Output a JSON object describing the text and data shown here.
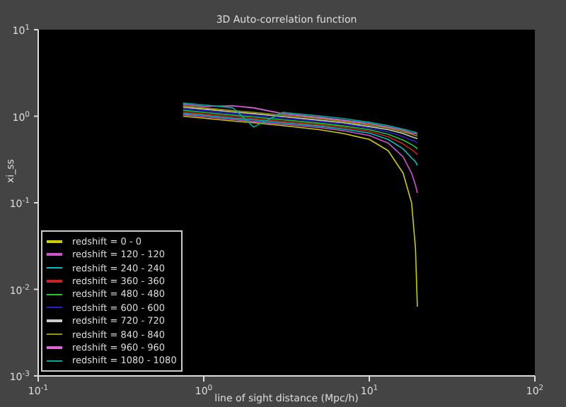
{
  "chart_data": {
    "type": "line",
    "title": "3D Auto-correlation function",
    "xlabel": "line of sight distance (Mpc/h)",
    "ylabel": "xi_ss",
    "log": "xy",
    "grid": false,
    "legend": "bottom left",
    "xlim": [
      0.1,
      100
    ],
    "ylim": [
      0.001,
      10
    ],
    "xticks": [
      {
        "value": 0.1,
        "label": "10$^{-1}$"
      },
      {
        "value": 1,
        "label": "10$^{0}$"
      },
      {
        "value": 10,
        "label": "10$^{1}$"
      },
      {
        "value": 100,
        "label": "10$^{2}$"
      }
    ],
    "yticks": [
      {
        "value": 0.001,
        "label": "10$^{-3}$"
      },
      {
        "value": 0.01,
        "label": "10$^{-2}$"
      },
      {
        "value": 0.1,
        "label": "10$^{-1}$"
      },
      {
        "value": 1,
        "label": "10$^{0}$"
      },
      {
        "value": 10,
        "label": "10$^{1}$"
      }
    ],
    "x": [
      0.75,
      1,
      1.5,
      2,
      3,
      5,
      7,
      10,
      13,
      16,
      18,
      19,
      19.5
    ],
    "series": [
      {
        "name": "redshift = 0 - 0",
        "color": "#cccc00",
        "values": [
          1.0,
          0.95,
          0.88,
          0.84,
          0.78,
          0.7,
          0.63,
          0.54,
          0.4,
          0.22,
          0.1,
          0.03,
          0.0063
        ]
      },
      {
        "name": "redshift = 120 - 120",
        "color": "#cc55cc",
        "values": [
          1.04,
          0.99,
          0.92,
          0.87,
          0.81,
          0.74,
          0.68,
          0.6,
          0.49,
          0.34,
          0.22,
          0.16,
          0.13
        ]
      },
      {
        "name": "redshift = 240 - 240",
        "color": "#00c0c0",
        "values": [
          1.08,
          1.03,
          0.95,
          0.91,
          0.84,
          0.77,
          0.71,
          0.64,
          0.54,
          0.42,
          0.33,
          0.3,
          0.27
        ]
      },
      {
        "name": "redshift = 360 - 360",
        "color": "#cc2222",
        "values": [
          1.12,
          1.06,
          0.99,
          0.94,
          0.87,
          0.8,
          0.74,
          0.67,
          0.58,
          0.48,
          0.41,
          0.38,
          0.36
        ]
      },
      {
        "name": "redshift = 480 - 480",
        "color": "#22cc22",
        "values": [
          1.17,
          1.11,
          1.03,
          0.98,
          0.91,
          0.83,
          0.77,
          0.7,
          0.62,
          0.53,
          0.47,
          0.44,
          0.42
        ]
      },
      {
        "name": "redshift = 600 - 600",
        "color": "#2222cc",
        "values": [
          1.22,
          1.16,
          1.07,
          1.02,
          0.95,
          0.87,
          0.81,
          0.73,
          0.66,
          0.58,
          0.53,
          0.51,
          0.49
        ]
      },
      {
        "name": "redshift = 720 - 720",
        "color": "#cccccc",
        "values": [
          1.27,
          1.21,
          1.12,
          1.07,
          0.99,
          0.9,
          0.84,
          0.76,
          0.7,
          0.63,
          0.58,
          0.56,
          0.55
        ]
      },
      {
        "name": "redshift = 840 - 840",
        "color": "#999900",
        "values": [
          1.32,
          1.25,
          1.16,
          1.11,
          1.03,
          0.94,
          0.87,
          0.79,
          0.73,
          0.66,
          0.62,
          0.6,
          0.59
        ]
      },
      {
        "name": "redshift = 960 - 960",
        "color": "#dd66dd",
        "values": [
          1.37,
          1.3,
          1.32,
          1.25,
          1.07,
          0.97,
          0.9,
          0.82,
          0.75,
          0.69,
          0.64,
          0.63,
          0.62
        ]
      },
      {
        "name": "redshift = 1080 - 1080",
        "color": "#00aa99",
        "values": [
          1.42,
          1.35,
          1.25,
          0.75,
          1.11,
          1.01,
          0.94,
          0.85,
          0.78,
          0.71,
          0.67,
          0.65,
          0.64
        ]
      }
    ]
  }
}
